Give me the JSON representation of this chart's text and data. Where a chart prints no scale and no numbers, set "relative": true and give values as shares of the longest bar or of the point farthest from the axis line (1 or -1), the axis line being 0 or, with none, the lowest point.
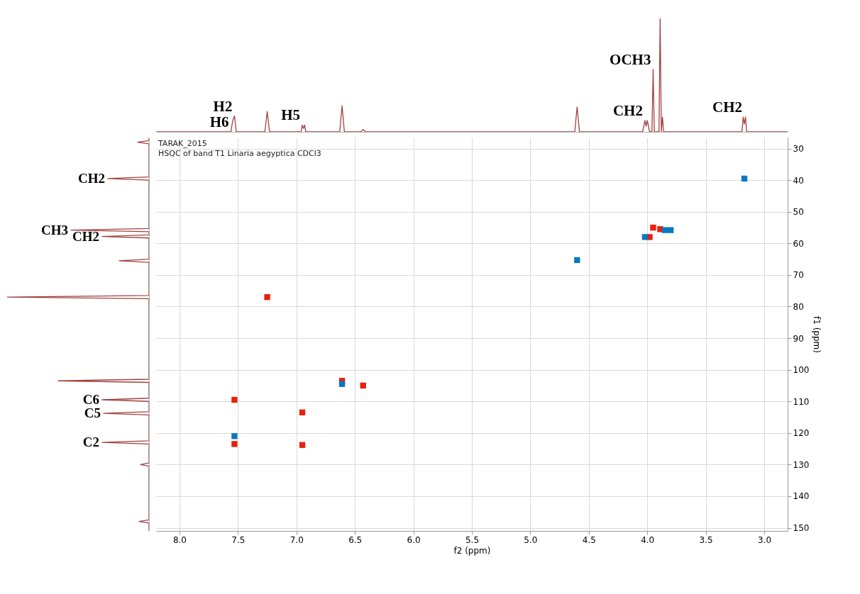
{
  "chart_data": [
    {
      "type": "line",
      "relative": true,
      "xlim": [
        8.2,
        2.8
      ],
      "tick_labels": false,
      "series": [
        {
          "color": "#a0413f",
          "x": [
            8.2,
            7.56,
            7.545,
            7.53,
            7.515,
            7.27,
            7.25,
            7.23,
            6.96,
            6.95,
            6.94,
            6.93,
            6.92,
            6.63,
            6.61,
            6.59,
            6.45,
            6.43,
            6.41,
            4.62,
            4.6,
            4.58,
            4.04,
            4.02,
            4.01,
            4.0,
            3.98,
            3.96,
            3.95,
            3.94,
            3.9,
            3.89,
            3.88,
            3.87,
            3.86,
            3.19,
            3.18,
            3.17,
            3.16,
            3.15,
            2.8
          ],
          "values": [
            0,
            0,
            0.1,
            0.14,
            0,
            0,
            0.18,
            0,
            0,
            0.06,
            0.03,
            0.06,
            0,
            0,
            0.23,
            0,
            0,
            0.02,
            0,
            0,
            0.22,
            0,
            0,
            0.1,
            0.05,
            0.1,
            0,
            0,
            0.55,
            0,
            0,
            1.0,
            0,
            0.13,
            0,
            0,
            0.13,
            0.07,
            0.13,
            0,
            0
          ]
        }
      ],
      "annotations": [
        {
          "text": "H6",
          "x": 7.56,
          "y": 0
        },
        {
          "text": "H2",
          "x": 7.53,
          "y": 0.14
        },
        {
          "text": "H5",
          "x": 6.95,
          "y": 0.06
        },
        {
          "text": "CH2",
          "x": 4.02,
          "y": 0.1
        },
        {
          "text": "OCH3",
          "x": 3.95,
          "y": 0.55
        },
        {
          "text": "CH2",
          "x": 3.17,
          "y": 0.13
        }
      ]
    },
    {
      "type": "line",
      "relative": true,
      "orientation": "horizontal",
      "ylim": [
        151,
        26.5
      ],
      "tick_labels": false,
      "series": [
        {
          "color": "#a0413f",
          "x": [
            26.5,
            27.5,
            28,
            28.5,
            39,
            39.5,
            40,
            55.3,
            55.8,
            56.3,
            57.3,
            57.8,
            58.3,
            65,
            65.5,
            66,
            76.5,
            77,
            77.5,
            103,
            103.5,
            104,
            109,
            109.5,
            110,
            113.3,
            113.8,
            114.3,
            122.5,
            123,
            123.5,
            129.5,
            130,
            130.5,
            147.5,
            148,
            148.5,
            151
          ],
          "values": [
            0,
            0,
            -0.08,
            0,
            0,
            -0.29,
            0,
            0,
            -0.55,
            0,
            0,
            -0.33,
            0,
            0,
            -0.21,
            0,
            0,
            -1.0,
            0,
            0,
            -0.64,
            0,
            0,
            -0.33,
            0,
            0,
            -0.32,
            0,
            0,
            -0.33,
            0,
            0,
            -0.06,
            0,
            0,
            -0.07,
            0,
            0
          ]
        }
      ],
      "annotations": [
        {
          "text": "CH2",
          "x": -0.29,
          "y": 39.5
        },
        {
          "text": "CH3",
          "x": -0.55,
          "y": 55.8
        },
        {
          "text": "CH2",
          "x": -0.33,
          "y": 57.8
        },
        {
          "text": "C6",
          "x": -0.33,
          "y": 109.5
        },
        {
          "text": "C5",
          "x": -0.32,
          "y": 113.8
        },
        {
          "text": "C2",
          "x": -0.33,
          "y": 123
        }
      ]
    },
    {
      "type": "scatter",
      "xlim": [
        8.2,
        2.8
      ],
      "ylim": [
        151,
        26.5
      ],
      "xlabel": "f2 (ppm)",
      "ylabel": "f1 (ppm)",
      "grid": true,
      "marker": "square",
      "xticks": [
        {
          "value": 8,
          "label": "8.0"
        },
        {
          "value": 7.5,
          "label": "7.5"
        },
        {
          "value": 7,
          "label": "7.0"
        },
        {
          "value": 6.5,
          "label": "6.5"
        },
        {
          "value": 6,
          "label": "6.0"
        },
        {
          "value": 5.5,
          "label": "5.5"
        },
        {
          "value": 5,
          "label": "5.0"
        },
        {
          "value": 4.5,
          "label": "4.5"
        },
        {
          "value": 4,
          "label": "4.0"
        },
        {
          "value": 3.5,
          "label": "3.5"
        },
        {
          "value": 3,
          "label": "3.0"
        }
      ],
      "yticks": [
        30,
        40,
        50,
        60,
        70,
        80,
        90,
        100,
        110,
        120,
        130,
        140,
        150
      ],
      "series": [
        {
          "color": "#e8200c",
          "x": [
            7.53,
            7.53,
            7.25,
            6.95,
            6.95,
            6.61,
            6.43,
            3.95,
            3.89,
            3.98
          ],
          "values": [
            109.5,
            123.5,
            77,
            113.5,
            123.8,
            103.5,
            105,
            55,
            55.5,
            58
          ]
        },
        {
          "color": "#0a78c0",
          "x": [
            3.17,
            4.6,
            4.02,
            3.85,
            3.8,
            6.61,
            7.53
          ],
          "values": [
            39.5,
            65.3,
            58,
            55.8,
            55.8,
            104.5,
            121
          ]
        }
      ],
      "annotations": [
        "TARAK_2015",
        "HSQC of band T1 Linaria aegyptica CDCl3"
      ]
    }
  ]
}
